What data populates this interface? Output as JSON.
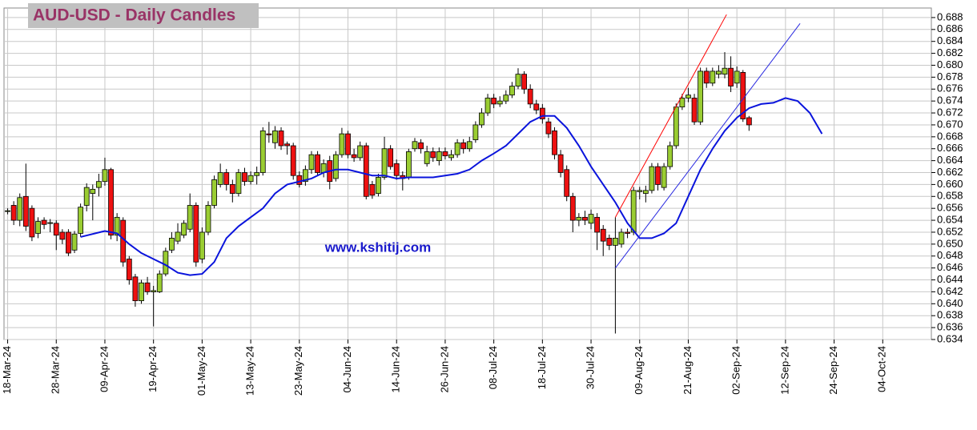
{
  "chart_data": {
    "type": "candlestick",
    "title": "AUD-USD - Daily Candles",
    "watermark": "www.kshitij.com",
    "up_color": "#9acd32",
    "down_color": "#ee1111",
    "grid": true,
    "ylim": [
      0.634,
      0.6896
    ],
    "yticks": [
      0.634,
      0.636,
      0.638,
      {
        "value": 0.64,
        "label": "0.640"
      },
      0.642,
      0.644,
      0.646,
      0.648,
      {
        "value": 0.65,
        "label": "0.650"
      },
      0.652,
      0.654,
      0.656,
      0.658,
      {
        "value": 0.66,
        "label": "0.660"
      },
      0.662,
      0.664,
      0.666,
      0.668,
      {
        "value": 0.67,
        "label": "0.670"
      },
      0.672,
      0.674,
      0.676,
      0.678,
      {
        "value": 0.68,
        "label": "0.680"
      },
      0.682,
      0.684,
      0.686,
      0.688
    ],
    "xlim": [
      -0.6,
      152
    ],
    "xticks": [
      {
        "value": 0,
        "label": "18-Mar-24"
      },
      {
        "value": 8,
        "label": "28-Mar-24"
      },
      {
        "value": 16,
        "label": "09-Apr-24"
      },
      {
        "value": 24,
        "label": "19-Apr-24"
      },
      {
        "value": 32,
        "label": "01-May-24"
      },
      {
        "value": 40,
        "label": "13-May-24"
      },
      {
        "value": 48,
        "label": "23-May-24"
      },
      {
        "value": 56,
        "label": "04-Jun-24"
      },
      {
        "value": 64,
        "label": "14-Jun-24"
      },
      {
        "value": 72,
        "label": "26-Jun-24"
      },
      {
        "value": 80,
        "label": "08-Jul-24"
      },
      {
        "value": 88,
        "label": "18-Jul-24"
      },
      {
        "value": 96,
        "label": "30-Jul-24"
      },
      {
        "value": 104,
        "label": "09-Aug-24"
      },
      {
        "value": 112,
        "label": "21-Aug-24"
      },
      {
        "value": 120,
        "label": "02-Sep-24"
      },
      {
        "value": 128,
        "label": "12-Sep-24"
      },
      {
        "value": 136,
        "label": "24-Sep-24"
      },
      {
        "value": 144,
        "label": "04-Oct-24"
      }
    ],
    "open": [
      0.6555,
      0.6565,
      0.654,
      0.658,
      0.656,
      0.6518,
      0.654,
      0.6535,
      0.6535,
      0.652,
      0.652,
      0.649,
      0.6518,
      0.6565,
      0.6585,
      0.6595,
      0.6605,
      0.6625,
      0.6515,
      0.654,
      0.6475,
      0.6445,
      0.6405,
      0.6435,
      0.642,
      0.642,
      0.645,
      0.649,
      0.6505,
      0.6515,
      0.6525,
      0.6565,
      0.6475,
      0.652,
      0.6565,
      0.66,
      0.662,
      0.66,
      0.6585,
      0.662,
      0.6605,
      0.6615,
      0.662,
      0.6685,
      0.667,
      0.669,
      0.6668,
      0.6665,
      0.6615,
      0.6605,
      0.6625,
      0.665,
      0.662,
      0.664,
      0.661,
      0.665,
      0.6685,
      0.665,
      0.6645,
      0.6665,
      0.66,
      0.6585,
      0.6612,
      0.666,
      0.6635,
      0.6615,
      0.6612,
      0.666,
      0.667,
      0.6635,
      0.6655,
      0.664,
      0.6655,
      0.6645,
      0.665,
      0.667,
      0.666,
      0.6675,
      0.67,
      0.672,
      0.6745,
      0.6735,
      0.674,
      0.675,
      0.6765,
      0.6785,
      0.676,
      0.6735,
      0.6728,
      0.6705,
      0.669,
      0.665,
      0.6625,
      0.658,
      0.654,
      0.6545,
      0.6535,
      0.6545,
      0.6525,
      0.651,
      0.6498,
      0.65,
      0.652,
      0.652,
      0.6588,
      0.6585,
      0.659,
      0.663,
      0.6595,
      0.663,
      0.6665,
      0.673,
      0.6745,
      0.6745,
      0.6705,
      0.679,
      0.677,
      0.6785,
      0.6785,
      0.6795,
      0.677,
      0.6788,
      0.6712
    ],
    "high": [
      0.656,
      0.6572,
      0.6585,
      0.6635,
      0.6565,
      0.6545,
      0.6545,
      0.6542,
      0.654,
      0.6525,
      0.6525,
      0.6522,
      0.6568,
      0.6602,
      0.66,
      0.6618,
      0.6645,
      0.6628,
      0.6552,
      0.6545,
      0.648,
      0.645,
      0.644,
      0.6445,
      0.643,
      0.6456,
      0.6494,
      0.652,
      0.6535,
      0.654,
      0.6585,
      0.657,
      0.6528,
      0.6572,
      0.6615,
      0.6635,
      0.6626,
      0.6608,
      0.6626,
      0.6628,
      0.6622,
      0.663,
      0.6696,
      0.6705,
      0.6698,
      0.6696,
      0.6672,
      0.667,
      0.6622,
      0.6632,
      0.6656,
      0.6656,
      0.6642,
      0.6648,
      0.6656,
      0.6695,
      0.669,
      0.666,
      0.6672,
      0.667,
      0.6606,
      0.6618,
      0.668,
      0.6666,
      0.6642,
      0.6622,
      0.666,
      0.6678,
      0.6676,
      0.6665,
      0.6662,
      0.6662,
      0.6662,
      0.6658,
      0.6676,
      0.6676,
      0.668,
      0.6706,
      0.6728,
      0.6752,
      0.6752,
      0.6748,
      0.6758,
      0.6772,
      0.6795,
      0.679,
      0.6768,
      0.6742,
      0.6735,
      0.6712,
      0.6696,
      0.6658,
      0.6632,
      0.6586,
      0.6552,
      0.6556,
      0.6558,
      0.6552,
      0.6532,
      0.6516,
      0.6545,
      0.6526,
      0.6526,
      0.6596,
      0.6596,
      0.6598,
      0.6636,
      0.6636,
      0.6636,
      0.6672,
      0.6736,
      0.6752,
      0.6762,
      0.6752,
      0.6796,
      0.6796,
      0.6796,
      0.68,
      0.6822,
      0.6815,
      0.6798,
      0.6792,
      0.6715
    ],
    "low": [
      0.655,
      0.6532,
      0.653,
      0.6522,
      0.6505,
      0.651,
      0.6525,
      0.652,
      0.649,
      0.65,
      0.648,
      0.6485,
      0.6512,
      0.6555,
      0.654,
      0.658,
      0.6598,
      0.6508,
      0.6505,
      0.6462,
      0.6432,
      0.6395,
      0.64,
      0.6415,
      0.6362,
      0.6418,
      0.6446,
      0.6485,
      0.65,
      0.651,
      0.652,
      0.6462,
      0.6468,
      0.6515,
      0.656,
      0.6595,
      0.659,
      0.657,
      0.658,
      0.6598,
      0.66,
      0.66,
      0.6615,
      0.667,
      0.666,
      0.6658,
      0.665,
      0.6608,
      0.6595,
      0.6598,
      0.6618,
      0.6614,
      0.6612,
      0.6592,
      0.6605,
      0.6645,
      0.6644,
      0.6638,
      0.664,
      0.6575,
      0.6576,
      0.658,
      0.6608,
      0.6625,
      0.6608,
      0.659,
      0.6608,
      0.6655,
      0.6652,
      0.663,
      0.6638,
      0.6632,
      0.6642,
      0.664,
      0.6645,
      0.6652,
      0.6655,
      0.667,
      0.6695,
      0.6715,
      0.6728,
      0.673,
      0.6735,
      0.6745,
      0.676,
      0.6752,
      0.6728,
      0.6718,
      0.6702,
      0.6678,
      0.6642,
      0.6612,
      0.6572,
      0.652,
      0.653,
      0.6532,
      0.6525,
      0.649,
      0.648,
      0.649,
      0.635,
      0.6494,
      0.651,
      0.6515,
      0.6575,
      0.657,
      0.6585,
      0.659,
      0.659,
      0.6625,
      0.666,
      0.6725,
      0.6738,
      0.67,
      0.67,
      0.6762,
      0.6765,
      0.6778,
      0.6778,
      0.6755,
      0.6762,
      0.6705,
      0.669
    ],
    "close": [
      0.6556,
      0.654,
      0.6578,
      0.653,
      0.6512,
      0.6538,
      0.6533,
      0.6536,
      0.6515,
      0.6508,
      0.6485,
      0.6517,
      0.6562,
      0.6595,
      0.6592,
      0.6605,
      0.6625,
      0.6515,
      0.6545,
      0.647,
      0.644,
      0.6405,
      0.6435,
      0.642,
      0.6422,
      0.645,
      0.6488,
      0.651,
      0.652,
      0.6535,
      0.6565,
      0.647,
      0.652,
      0.6565,
      0.6608,
      0.662,
      0.66,
      0.6585,
      0.662,
      0.6605,
      0.6615,
      0.662,
      0.669,
      0.6683,
      0.669,
      0.6665,
      0.6665,
      0.6615,
      0.66,
      0.6625,
      0.665,
      0.662,
      0.6635,
      0.6605,
      0.665,
      0.6685,
      0.665,
      0.6645,
      0.6665,
      0.658,
      0.6582,
      0.6612,
      0.666,
      0.663,
      0.6615,
      0.661,
      0.6655,
      0.6672,
      0.666,
      0.6655,
      0.6645,
      0.6655,
      0.6648,
      0.665,
      0.667,
      0.666,
      0.6672,
      0.67,
      0.672,
      0.6745,
      0.6735,
      0.674,
      0.675,
      0.6765,
      0.6785,
      0.676,
      0.6735,
      0.6725,
      0.671,
      0.6685,
      0.665,
      0.662,
      0.658,
      0.654,
      0.6545,
      0.654,
      0.655,
      0.652,
      0.6505,
      0.6498,
      0.651,
      0.652,
      0.6518,
      0.659,
      0.659,
      0.659,
      0.663,
      0.66,
      0.663,
      0.6665,
      0.673,
      0.6745,
      0.675,
      0.6705,
      0.679,
      0.677,
      0.679,
      0.679,
      0.6795,
      0.6765,
      0.679,
      0.671,
      0.67
    ],
    "lines": [
      {
        "color": "#0a14dc",
        "width": 2,
        "x": [
          12,
          16,
          18,
          20,
          22,
          24,
          26,
          28,
          30,
          32,
          34,
          36,
          38,
          40,
          42,
          44,
          46,
          48,
          50,
          52,
          54,
          56,
          58,
          60,
          62,
          64,
          66,
          68,
          70,
          72,
          74,
          76,
          78,
          80,
          82,
          84,
          86,
          88,
          90,
          92,
          94,
          96,
          98,
          100,
          102,
          104,
          106,
          108,
          110,
          112,
          114,
          116,
          118,
          120,
          122,
          124,
          126,
          128,
          130,
          132,
          134
        ],
        "values": [
          0.6512,
          0.6522,
          0.6518,
          0.65,
          0.6485,
          0.6475,
          0.6465,
          0.6452,
          0.6448,
          0.645,
          0.647,
          0.651,
          0.653,
          0.6545,
          0.656,
          0.6585,
          0.66,
          0.6605,
          0.661,
          0.662,
          0.6625,
          0.6625,
          0.662,
          0.6615,
          0.6615,
          0.661,
          0.6612,
          0.6612,
          0.6612,
          0.6615,
          0.6618,
          0.6625,
          0.664,
          0.6652,
          0.6665,
          0.6685,
          0.6705,
          0.6715,
          0.6715,
          0.6695,
          0.6665,
          0.663,
          0.66,
          0.657,
          0.6535,
          0.651,
          0.651,
          0.6518,
          0.6535,
          0.658,
          0.6625,
          0.666,
          0.669,
          0.6712,
          0.6728,
          0.6735,
          0.6737,
          0.6745,
          0.674,
          0.672,
          0.6685
        ]
      },
      {
        "color": "#ff0000",
        "width": 1,
        "x": [
          100,
          118.3
        ],
        "values": [
          0.6545,
          0.6885
        ]
      },
      {
        "color": "#2828e0",
        "width": 1,
        "x": [
          100,
          130.4
        ],
        "values": [
          0.646,
          0.687
        ]
      }
    ]
  }
}
